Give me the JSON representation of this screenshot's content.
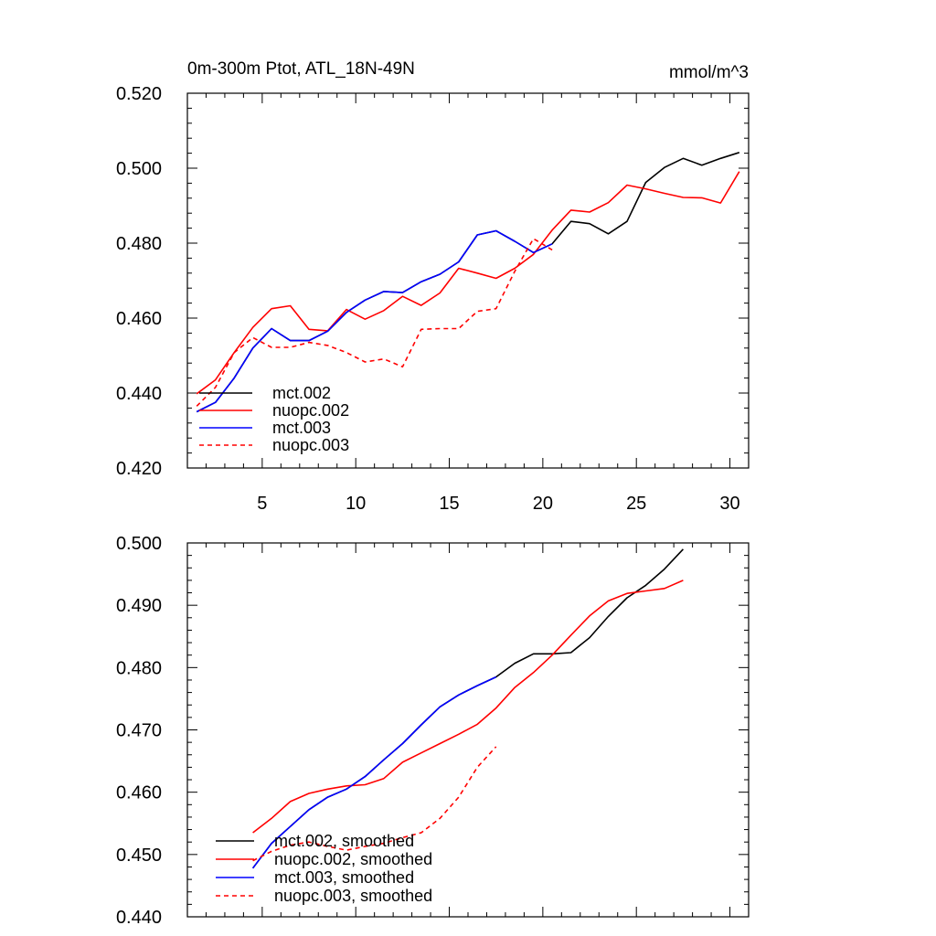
{
  "chart_data": [
    {
      "type": "line",
      "title": "0m-300m Ptot, ATL_18N-49N",
      "units": "mmol/m^3",
      "xlim": [
        1,
        31
      ],
      "ylim": [
        0.42,
        0.52
      ],
      "xticks": [
        5,
        10,
        15,
        20,
        25,
        30
      ],
      "xtick_labels": [
        "5",
        "10",
        "15",
        "20",
        "25",
        "30"
      ],
      "yticks": [
        0.42,
        0.44,
        0.46,
        0.48,
        0.5,
        0.52
      ],
      "ytick_labels": [
        "0.420",
        "0.440",
        "0.460",
        "0.480",
        "0.500",
        "0.520"
      ],
      "legend_position": "bottom-left",
      "series": [
        {
          "name": "mct.002",
          "color": "#000000",
          "dash": false,
          "x": [
            1.5,
            2.5,
            3.5,
            4.5,
            5.5,
            6.5,
            7.5,
            8.5,
            9.5,
            10.5,
            11.5,
            12.5,
            13.5,
            14.5,
            15.5,
            16.5,
            17.5,
            18.5,
            19.5,
            20.5,
            21.5,
            22.5,
            23.5,
            24.5,
            25.5,
            26.5,
            27.5,
            28.5,
            29.5,
            30.5
          ],
          "y": [
            0.435,
            0.4375,
            0.444,
            0.452,
            0.4572,
            0.454,
            0.454,
            0.4565,
            0.4615,
            0.4648,
            0.4671,
            0.4668,
            0.4697,
            0.4717,
            0.475,
            0.4822,
            0.4833,
            0.4805,
            0.4775,
            0.4798,
            0.4858,
            0.4852,
            0.4825,
            0.4858,
            0.4962,
            0.5002,
            0.5026,
            0.5008,
            0.5026,
            0.5042
          ]
        },
        {
          "name": "nuopc.002",
          "color": "#ff0000",
          "dash": false,
          "x": [
            1.5,
            2.5,
            3.5,
            4.5,
            5.5,
            6.5,
            7.5,
            8.5,
            9.5,
            10.5,
            11.5,
            12.5,
            13.5,
            14.5,
            15.5,
            16.5,
            17.5,
            18.5,
            19.5,
            20.5,
            21.5,
            22.5,
            23.5,
            24.5,
            25.5,
            26.5,
            27.5,
            28.5,
            29.5,
            30.5
          ],
          "y": [
            0.4398,
            0.4435,
            0.4508,
            0.4575,
            0.4625,
            0.4633,
            0.457,
            0.4566,
            0.4623,
            0.4597,
            0.462,
            0.4658,
            0.4634,
            0.4667,
            0.4733,
            0.472,
            0.4706,
            0.4733,
            0.477,
            0.4835,
            0.4888,
            0.4883,
            0.4908,
            0.4955,
            0.4945,
            0.4933,
            0.4922,
            0.4921,
            0.4907,
            0.4991
          ]
        },
        {
          "name": "mct.003",
          "color": "#0000ff",
          "dash": false,
          "x": [
            1.5,
            2.5,
            3.5,
            4.5,
            5.5,
            6.5,
            7.5,
            8.5,
            9.5,
            10.5,
            11.5,
            12.5,
            13.5,
            14.5,
            15.5,
            16.5,
            17.5,
            18.5,
            19.5,
            20.5
          ],
          "y": [
            0.435,
            0.4375,
            0.444,
            0.452,
            0.4572,
            0.454,
            0.454,
            0.4565,
            0.4615,
            0.4648,
            0.4671,
            0.4668,
            0.4697,
            0.4717,
            0.475,
            0.4822,
            0.4833,
            0.4805,
            0.4775,
            0.4798
          ]
        },
        {
          "name": "nuopc.003",
          "color": "#ff0000",
          "dash": true,
          "x": [
            1.5,
            2.5,
            3.5,
            4.5,
            5.5,
            6.5,
            7.5,
            8.5,
            9.5,
            10.5,
            11.5,
            12.5,
            13.5,
            14.5,
            15.5,
            16.5,
            17.5,
            18.5,
            19.5,
            20.5
          ],
          "y": [
            0.4365,
            0.4415,
            0.4508,
            0.4548,
            0.4522,
            0.4522,
            0.4535,
            0.4527,
            0.4508,
            0.4483,
            0.4491,
            0.447,
            0.457,
            0.4572,
            0.4572,
            0.4618,
            0.4625,
            0.4725,
            0.4812,
            0.4782
          ]
        }
      ]
    },
    {
      "type": "line",
      "xlim": [
        1,
        31
      ],
      "ylim": [
        0.44,
        0.5
      ],
      "xticks": [
        5,
        10,
        15,
        20,
        25,
        30
      ],
      "yticks": [
        0.44,
        0.45,
        0.46,
        0.47,
        0.48,
        0.49,
        0.5
      ],
      "ytick_labels": [
        "0.440",
        "0.450",
        "0.460",
        "0.470",
        "0.480",
        "0.490",
        "0.500"
      ],
      "legend_position": "bottom-left",
      "series": [
        {
          "name": "mct.002, smoothed",
          "color": "#000000",
          "dash": false,
          "x": [
            4.5,
            5.5,
            6.5,
            7.5,
            8.5,
            9.5,
            10.5,
            11.5,
            12.5,
            13.5,
            14.5,
            15.5,
            16.5,
            17.5,
            18.5,
            19.5,
            20.5,
            21.5,
            22.5,
            23.5,
            24.5,
            25.5,
            26.5,
            27.5
          ],
          "y": [
            0.4478,
            0.4518,
            0.4545,
            0.4572,
            0.4592,
            0.4605,
            0.4625,
            0.4652,
            0.4678,
            0.4708,
            0.4737,
            0.4756,
            0.4771,
            0.4785,
            0.4807,
            0.4822,
            0.4822,
            0.4824,
            0.4848,
            0.4882,
            0.4912,
            0.4932,
            0.4958,
            0.499
          ]
        },
        {
          "name": "nuopc.002, smoothed",
          "color": "#ff0000",
          "dash": false,
          "x": [
            4.5,
            5.5,
            6.5,
            7.5,
            8.5,
            9.5,
            10.5,
            11.5,
            12.5,
            13.5,
            14.5,
            15.5,
            16.5,
            17.5,
            18.5,
            19.5,
            20.5,
            21.5,
            22.5,
            23.5,
            24.5,
            25.5,
            26.5,
            27.5
          ],
          "y": [
            0.4535,
            0.4558,
            0.4585,
            0.4598,
            0.4605,
            0.461,
            0.4612,
            0.4622,
            0.4648,
            0.4663,
            0.4678,
            0.4693,
            0.4709,
            0.4735,
            0.4768,
            0.4792,
            0.482,
            0.4852,
            0.4883,
            0.4907,
            0.4919,
            0.4923,
            0.4927,
            0.494
          ]
        },
        {
          "name": "mct.003, smoothed",
          "color": "#0000ff",
          "dash": false,
          "x": [
            4.5,
            5.5,
            6.5,
            7.5,
            8.5,
            9.5,
            10.5,
            11.5,
            12.5,
            13.5,
            14.5,
            15.5,
            16.5,
            17.5
          ],
          "y": [
            0.4478,
            0.4518,
            0.4545,
            0.4572,
            0.4592,
            0.4605,
            0.4625,
            0.4652,
            0.4678,
            0.4708,
            0.4737,
            0.4756,
            0.4771,
            0.4785
          ]
        },
        {
          "name": "nuopc.003, smoothed",
          "color": "#ff0000",
          "dash": true,
          "x": [
            4.5,
            5.5,
            6.5,
            7.5,
            8.5,
            9.5,
            10.5,
            11.5,
            12.5,
            13.5,
            14.5,
            15.5,
            16.5,
            17.5
          ],
          "y": [
            0.449,
            0.4505,
            0.4515,
            0.452,
            0.4513,
            0.4507,
            0.4513,
            0.4518,
            0.4527,
            0.4535,
            0.4558,
            0.4592,
            0.464,
            0.4673
          ]
        }
      ]
    }
  ]
}
